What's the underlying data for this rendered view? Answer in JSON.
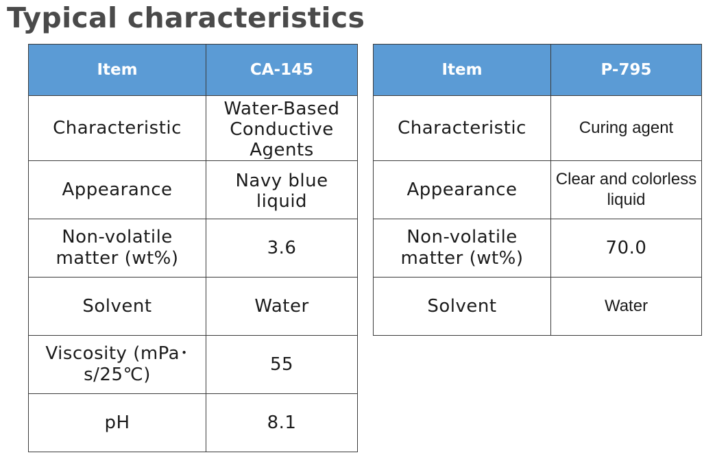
{
  "page": {
    "title": "Typical characteristics"
  },
  "tables": [
    {
      "header": {
        "item": "Item",
        "product": "CA-145"
      },
      "rows": [
        {
          "label": "Characteristic",
          "value": "Water-Based Conductive Agents"
        },
        {
          "label": "Appearance",
          "value": "Navy blue liquid"
        },
        {
          "label": "Non-volatile matter (wt%)",
          "value": "3.6"
        },
        {
          "label": "Solvent",
          "value": "Water"
        },
        {
          "label": "Viscosity (mPa･s/25℃)",
          "value": "55"
        },
        {
          "label": "pH",
          "value": "8.1"
        }
      ]
    },
    {
      "header": {
        "item": "Item",
        "product": "P-795"
      },
      "rows": [
        {
          "label": "Characteristic",
          "value": "Curing agent"
        },
        {
          "label": "Appearance",
          "value": "Clear and colorless liquid"
        },
        {
          "label": "Non-volatile matter (wt%)",
          "value": "70.0"
        },
        {
          "label": "Solvent",
          "value": "Water"
        }
      ]
    }
  ],
  "colors": {
    "header_bg": "#5b9bd5",
    "header_text": "#ffffff",
    "title_text": "#4a4a4a",
    "border": "#3a3a3a"
  }
}
